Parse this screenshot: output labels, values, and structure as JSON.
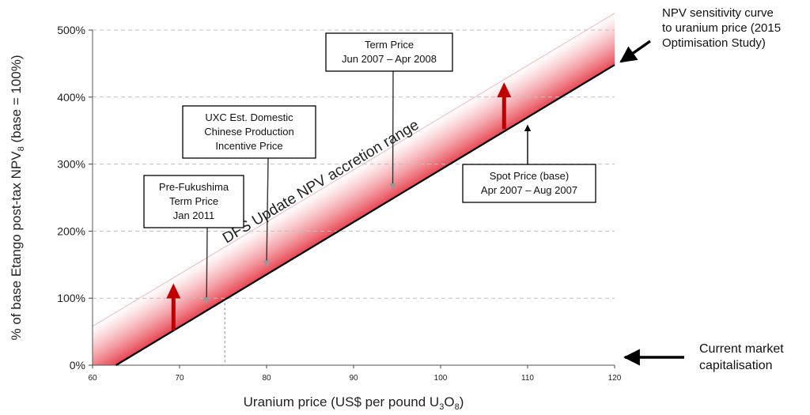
{
  "chart_data": {
    "type": "line",
    "title": "",
    "xlabel": "Uranium price (US$ per pound U",
    "xlabel_sub": "3",
    "xlabel_mid": "O",
    "xlabel_sub2": "8",
    "xlabel_end": ")",
    "ylabel": "% of base Etango post-tax NPV",
    "ylabel_sub": "8",
    "ylabel_end": " (base = 100%)",
    "xlim": [
      60,
      120
    ],
    "ylim": [
      0,
      500
    ],
    "x_ticks": [
      60,
      70,
      80,
      90,
      100,
      110,
      120
    ],
    "y_ticks": [
      0,
      100,
      200,
      300,
      400,
      500
    ],
    "y_tick_labels": [
      "0%",
      "100%",
      "200%",
      "300%",
      "400%",
      "500%"
    ],
    "grid": "horizontal dashed",
    "series": [
      {
        "name": "NPV sensitivity curve to uranium price (2015 Optimisation Study)",
        "x": [
          62.7,
          120
        ],
        "y": [
          0,
          448
        ]
      }
    ],
    "band": {
      "label": "DFS Update NPV accretion range",
      "upper_x": [
        60,
        120
      ],
      "upper_y": [
        58,
        525
      ]
    },
    "reference_line": {
      "x": 75.2,
      "y": 100
    },
    "callouts": [
      {
        "lines": [
          "Pre-Fukushima",
          "Term Price",
          "Jan 2011"
        ],
        "x": 73.1,
        "y": 90
      },
      {
        "lines": [
          "UXC Est. Domestic",
          "Chinese Production",
          "Incentive Price"
        ],
        "x": 80,
        "y": 145
      },
      {
        "lines": [
          "Term Price",
          "Jun 2007 – Apr 2008"
        ],
        "x": 94.5,
        "y": 260
      },
      {
        "lines": [
          "Spot Price (base)",
          "Apr 2007 – Aug 2007"
        ],
        "x": 110,
        "y": 365
      }
    ],
    "up_arrows": [
      {
        "x": 69.3,
        "y_from": 52,
        "y_to": 115
      },
      {
        "x": 107.3,
        "y_from": 352,
        "y_to": 415
      }
    ],
    "side_labels": {
      "curve": [
        "NPV sensitivity curve",
        "to uranium price (2015",
        "Optimisation Study)"
      ],
      "market": [
        "Current market",
        "capitalisation"
      ]
    },
    "colors": {
      "band_red": "#e63946",
      "arrow_red": "#c00000",
      "line": "#000000",
      "grid": "#bfbfbf",
      "box_border": "#000000"
    }
  }
}
